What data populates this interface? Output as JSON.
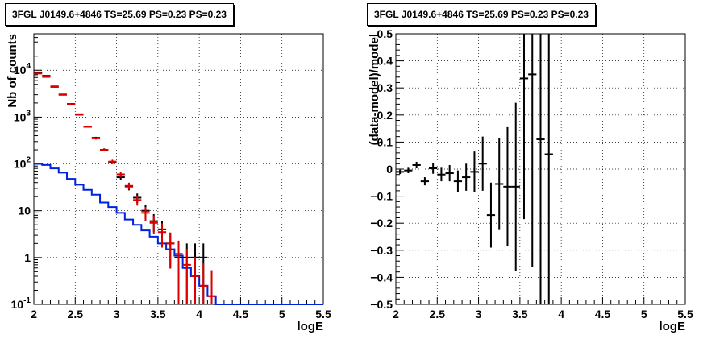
{
  "charts": [
    {
      "title": "3FGL J0149.6+4846 TS=25.69 PS=0.23 PS=0.23",
      "xlabel": "logE",
      "ylabel": "Nb of counts",
      "x_ticks": [
        "2",
        "2.5",
        "3",
        "3.5",
        "4",
        "4.5",
        "5",
        "5.5"
      ],
      "y_ticks": [
        {
          "base": "10",
          "exp": "-1"
        },
        {
          "base": "1",
          "exp": ""
        },
        {
          "base": "10",
          "exp": ""
        },
        {
          "base": "10",
          "exp": "2"
        },
        {
          "base": "10",
          "exp": "3"
        },
        {
          "base": "10",
          "exp": "4"
        }
      ]
    },
    {
      "title": "3FGL J0149.6+4846 TS=25.69 PS=0.23 PS=0.23",
      "xlabel": "logE",
      "ylabel": "(data-model)/model",
      "x_ticks": [
        "2",
        "2.5",
        "3",
        "3.5",
        "4",
        "4.5",
        "5",
        "5.5"
      ],
      "y_ticks": [
        "−0.5",
        "−0.4",
        "−0.3",
        "−0.2",
        "−0.1",
        "0",
        "0.1",
        "0.2",
        "0.3",
        "0.4",
        "0.5"
      ]
    }
  ],
  "chart_data": [
    {
      "type": "scatter",
      "title": "3FGL J0149.6+4846 TS=25.69 PS=0.23 PS=0.23",
      "xlabel": "logE",
      "ylabel": "Nb of counts",
      "xlim": [
        2,
        5.5
      ],
      "ylim": [
        0.1,
        60000
      ],
      "y_scale": "log",
      "grid": true,
      "bin_width": 0.1,
      "series": [
        {
          "color": "#000000",
          "style": "points-with-errors",
          "points": [
            {
              "x": 2.05,
              "y": 9000
            },
            {
              "x": 2.15,
              "y": 7600
            },
            {
              "x": 2.25,
              "y": 4500
            },
            {
              "x": 2.35,
              "y": 3000
            },
            {
              "x": 2.45,
              "y": 1900
            },
            {
              "x": 2.55,
              "y": 1150
            },
            {
              "x": 2.65,
              "y": 620
            },
            {
              "x": 2.75,
              "y": 360
            },
            {
              "x": 2.85,
              "y": 200
            },
            {
              "x": 2.95,
              "y": 110
            },
            {
              "x": 3.05,
              "y": 52
            },
            {
              "x": 3.15,
              "y": 33
            },
            {
              "x": 3.25,
              "y": 19
            },
            {
              "x": 3.35,
              "y": 10
            },
            {
              "x": 3.45,
              "y": 6
            },
            {
              "x": 3.55,
              "y": 4
            },
            {
              "x": 3.65,
              "y": 2
            },
            {
              "x": 3.75,
              "y": 1
            },
            {
              "x": 3.85,
              "y": 1
            },
            {
              "x": 3.95,
              "y": 1
            },
            {
              "x": 4.05,
              "y": 1
            }
          ]
        },
        {
          "color": "#dd0000",
          "style": "points-with-errors",
          "points": [
            {
              "x": 2.05,
              "y": 8500
            },
            {
              "x": 2.15,
              "y": 7200
            },
            {
              "x": 2.25,
              "y": 4400
            },
            {
              "x": 2.35,
              "y": 3050
            },
            {
              "x": 2.45,
              "y": 1850
            },
            {
              "x": 2.55,
              "y": 1120
            },
            {
              "x": 2.65,
              "y": 620
            },
            {
              "x": 2.75,
              "y": 350
            },
            {
              "x": 2.85,
              "y": 200
            },
            {
              "x": 2.95,
              "y": 112
            },
            {
              "x": 3.05,
              "y": 60
            },
            {
              "x": 3.15,
              "y": 34
            },
            {
              "x": 3.25,
              "y": 17
            },
            {
              "x": 3.35,
              "y": 9
            },
            {
              "x": 3.45,
              "y": 5.5
            },
            {
              "x": 3.55,
              "y": 3.5
            },
            {
              "x": 3.65,
              "y": 2
            },
            {
              "x": 3.75,
              "y": 1.2
            },
            {
              "x": 3.85,
              "y": 0.7
            },
            {
              "x": 3.95,
              "y": 0.4
            },
            {
              "x": 4.05,
              "y": 0.25
            },
            {
              "x": 4.15,
              "y": 0.15
            }
          ]
        },
        {
          "color": "#0022dd",
          "style": "histogram",
          "values": [
            100,
            95,
            80,
            65,
            48,
            36,
            28,
            22,
            15,
            12,
            9,
            6.5,
            5,
            3.8,
            2.8,
            2.0,
            1.5,
            1.1,
            0.6,
            0.4,
            0.25,
            0.15,
            0.1,
            0.1,
            0.1,
            0.1,
            0.1,
            0.1,
            0.1,
            0.1,
            0.1,
            0.1,
            0.1,
            0.1,
            0.1
          ]
        }
      ]
    },
    {
      "type": "scatter",
      "title": "3FGL J0149.6+4846 TS=25.69 PS=0.23 PS=0.23",
      "xlabel": "logE",
      "ylabel": "(data-model)/model",
      "xlim": [
        2,
        5.5
      ],
      "ylim": [
        -0.5,
        0.5
      ],
      "grid": true,
      "bin_width": 0.1,
      "series": [
        {
          "color": "#000000",
          "style": "points-with-errors",
          "points": [
            {
              "x": 2.05,
              "y": -0.01,
              "err": 0.008
            },
            {
              "x": 2.15,
              "y": -0.005,
              "err": 0.01
            },
            {
              "x": 2.25,
              "y": 0.015,
              "err": 0.012
            },
            {
              "x": 2.35,
              "y": -0.045,
              "err": 0.015
            },
            {
              "x": 2.45,
              "y": 0.003,
              "err": 0.02
            },
            {
              "x": 2.55,
              "y": -0.02,
              "err": 0.025
            },
            {
              "x": 2.65,
              "y": -0.015,
              "err": 0.03
            },
            {
              "x": 2.75,
              "y": -0.045,
              "err": 0.04
            },
            {
              "x": 2.85,
              "y": -0.03,
              "err": 0.05
            },
            {
              "x": 2.95,
              "y": -0.01,
              "err": 0.075
            },
            {
              "x": 3.05,
              "y": 0.02,
              "err": 0.1
            },
            {
              "x": 3.15,
              "y": -0.17,
              "err": 0.12
            },
            {
              "x": 3.25,
              "y": -0.055,
              "err": 0.17
            },
            {
              "x": 3.35,
              "y": -0.065,
              "err": 0.22
            },
            {
              "x": 3.45,
              "y": -0.065,
              "err": 0.31
            },
            {
              "x": 3.55,
              "y": 0.335,
              "err": 0.52
            },
            {
              "x": 3.65,
              "y": 0.35,
              "err": 0.71
            },
            {
              "x": 3.75,
              "y": 0.11,
              "err": 0.95
            },
            {
              "x": 3.85,
              "y": 0.055,
              "err": 1.3
            }
          ]
        }
      ]
    }
  ]
}
